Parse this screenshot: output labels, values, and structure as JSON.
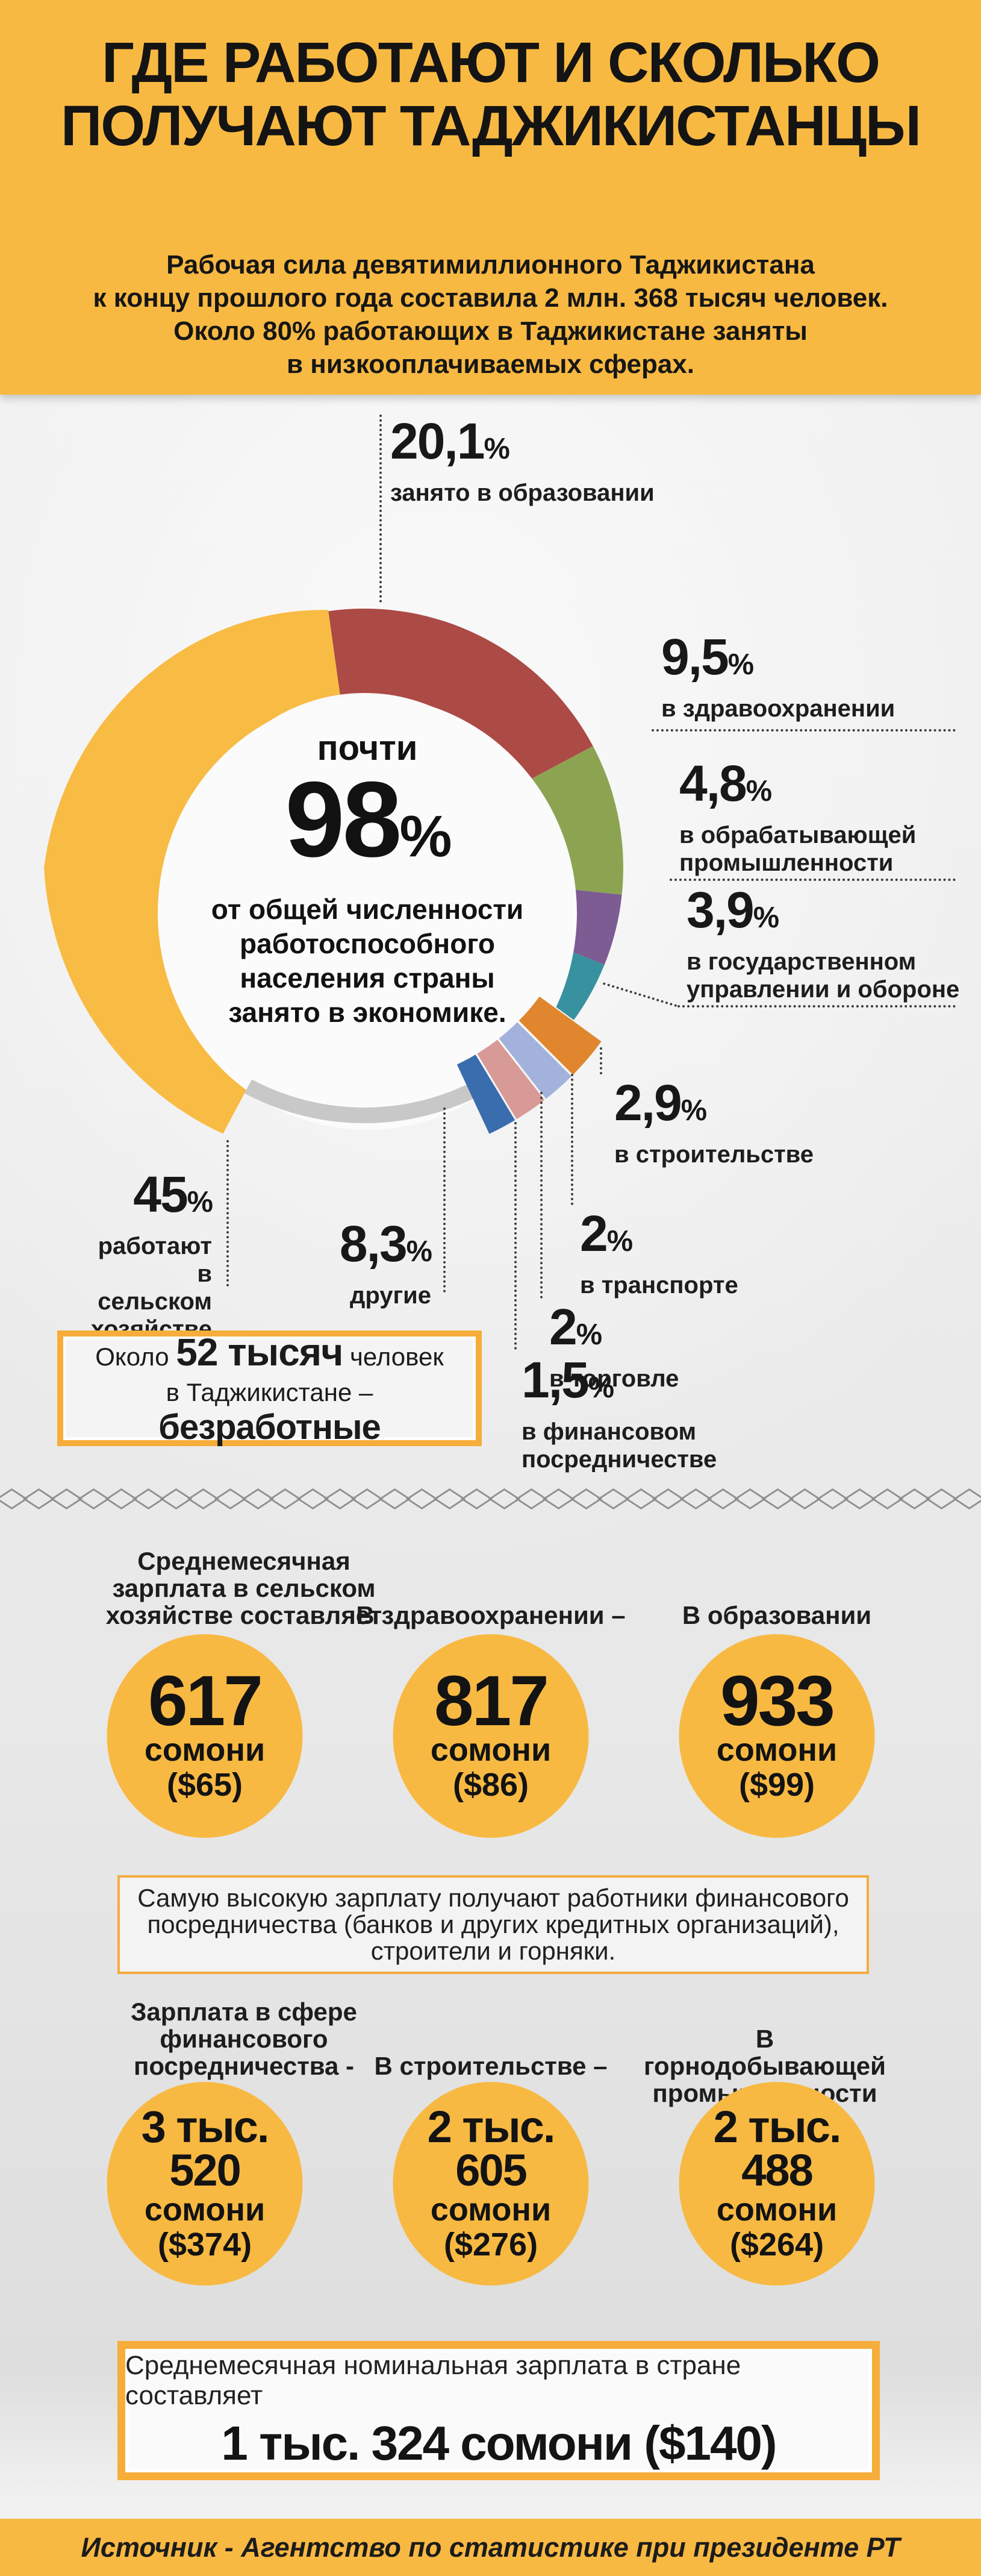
{
  "colors": {
    "band_orange": "#F8B942",
    "box_border_orange": "#F7AD3A",
    "background_gray": "#ECECEC",
    "text_dark": "#1A1A1A"
  },
  "header": {
    "title_lines": [
      "ГДЕ РАБОТАЮТ",
      "И СКОЛЬКО ПОЛУЧАЮТ",
      "ТАДЖИКИСТАНЦЫ"
    ],
    "subtitle_lines": [
      "Рабочая сила девятимиллионного Таджикистана",
      "к концу прошлого года составила 2 млн. 368 тысяч человек.",
      "Около 80% работающих в Таджикистане заняты",
      "в низкооплачиваемых сферах."
    ]
  },
  "chart_data": {
    "type": "pie",
    "unit": "%",
    "center_note": {
      "small": "почти",
      "value": "98",
      "lines": [
        "от общей численности",
        "работоспособного",
        "населения страны",
        "занято в экономике."
      ]
    },
    "segments": [
      {
        "label": "занято в образовании",
        "display": "20,1",
        "value": 20.1,
        "color": "#AC4A46",
        "label_lines": [
          "занято в образовании"
        ]
      },
      {
        "label": "в здравоохранении",
        "display": "9,5",
        "value": 9.5,
        "color": "#8CA452",
        "label_lines": [
          "в здравоохранении"
        ]
      },
      {
        "label": "в обрабатывающей промышленности",
        "display": "4,8",
        "value": 4.8,
        "color": "#7C5C92",
        "label_lines": [
          "в обрабатывающей",
          "промышленности"
        ]
      },
      {
        "label": "в государственном управлении и обороне",
        "display": "3,9",
        "value": 3.9,
        "color": "#38919E",
        "label_lines": [
          "в государственном",
          "управлении и обороне"
        ]
      },
      {
        "label": "в строительстве",
        "display": "2,9",
        "value": 2.9,
        "color": "#E0862F",
        "label_lines": [
          "в строительстве"
        ]
      },
      {
        "label": "в транспорте",
        "display": "2",
        "value": 2,
        "color": "#A2B2DC",
        "label_lines": [
          "в транспорте"
        ]
      },
      {
        "label": "в торговле",
        "display": "2",
        "value": 2,
        "color": "#D89A96",
        "label_lines": [
          "в торговле"
        ]
      },
      {
        "label": "в финансовом посредничестве",
        "display": "1,5",
        "value": 1.5,
        "color": "#3A6DAD",
        "label_lines": [
          "в финансовом",
          "посредничестве"
        ]
      },
      {
        "label": "другие",
        "display": "8,3",
        "value": 8.3,
        "color": "#C8C8C8",
        "label_lines": [
          "другие"
        ]
      },
      {
        "label": "работают в сельском хозяйстве",
        "display": "45",
        "value": 45,
        "color": "#F8BB43",
        "label_lines": [
          "работают",
          "в сельском",
          "хозяйстве"
        ]
      }
    ]
  },
  "unemployed_box": {
    "part1": "Около ",
    "bold1": "52 тысяч",
    "part2": " человек",
    "part3": "в Таджикистане – ",
    "bold2": "безработные"
  },
  "salary_row1": {
    "cards": [
      {
        "label_lines": [
          "Среднемесячная",
          "зарплата в сельском",
          "хозяйстве составляет"
        ],
        "value": "617",
        "currency": "сомони",
        "usd": "($65)"
      },
      {
        "label_lines": [
          "В здравоохранении –"
        ],
        "value": "817",
        "currency": "сомони",
        "usd": "($86)"
      },
      {
        "label_lines": [
          "В образовании –"
        ],
        "value": "933",
        "currency": "сомони",
        "usd": "($99)"
      }
    ]
  },
  "note_box": {
    "lines": [
      "Самую высокую зарплату получают работники финансового",
      "посредничества (банков и других кредитных организаций),",
      "строители и горняки."
    ]
  },
  "salary_row2": {
    "cards": [
      {
        "label_lines": [
          "Зарплата в сфере",
          "финансового",
          "посредничества -"
        ],
        "value_top": "3 тыс.",
        "value_bottom": "520",
        "currency": "сомони",
        "usd": "($374)"
      },
      {
        "label_lines": [
          "В строительстве –"
        ],
        "value_top": "2 тыс.",
        "value_bottom": "605",
        "currency": "сомони",
        "usd": "($276)"
      },
      {
        "label_lines": [
          "В горнодобывающей",
          "промышленности –"
        ],
        "value_top": "2 тыс.",
        "value_bottom": "488",
        "currency": "сомони",
        "usd": "($264)"
      }
    ]
  },
  "bottom_box": {
    "line1": "Среднемесячная номинальная зарплата в стране составляет",
    "line2": "1 тыс. 324 сомони ($140)"
  },
  "footer": {
    "source": "Источник - Агентство по статистике при президенте РТ"
  }
}
